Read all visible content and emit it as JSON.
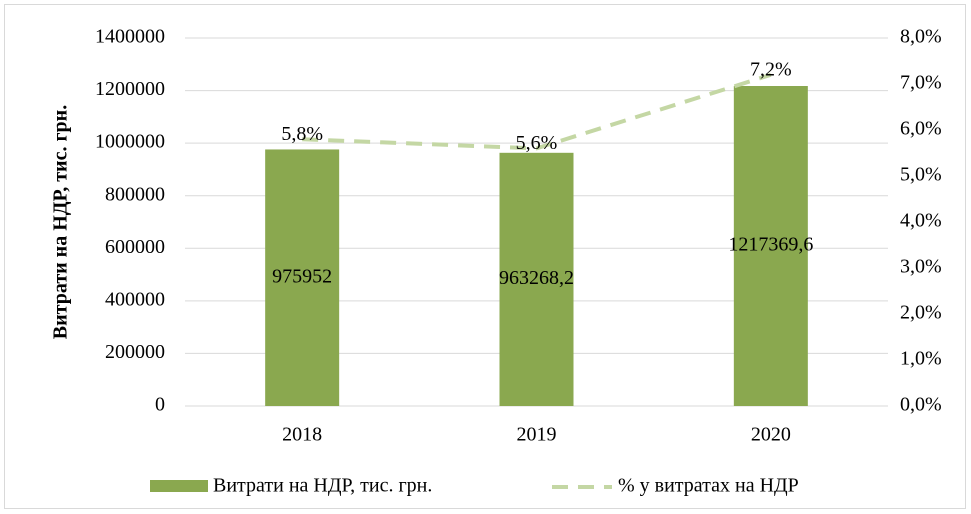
{
  "chart_data": {
    "type": "bar",
    "y_label": "Витрати на НДР, тис. грн.",
    "categories": [
      "2018",
      "2019",
      "2020"
    ],
    "series": [
      {
        "name": "Витрати на НДР, тис. грн.",
        "color": "#8aa84f",
        "values": [
          975952,
          963268.2,
          1217369.6
        ],
        "value_labels": [
          "975952",
          "963268,2",
          "1217369,6"
        ]
      },
      {
        "name": "% у витратах на НДР",
        "color": "#c4d7a4",
        "type": "line",
        "dashed": true,
        "axis": "y2",
        "values": [
          5.8,
          5.6,
          7.2
        ],
        "value_labels": [
          "5,8%",
          "5,6%",
          "7,2%"
        ]
      }
    ],
    "ylim": [
      0,
      1400000
    ],
    "yticks": [
      0,
      200000,
      400000,
      600000,
      800000,
      1000000,
      1200000,
      1400000
    ],
    "y2lim": [
      0,
      8
    ],
    "y2ticks": [
      {
        "value": 0,
        "label": "0,0%"
      },
      {
        "value": 1,
        "label": "1,0%"
      },
      {
        "value": 2,
        "label": "2,0%"
      },
      {
        "value": 3,
        "label": "3,0%"
      },
      {
        "value": 4,
        "label": "4,0%"
      },
      {
        "value": 5,
        "label": "5,0%"
      },
      {
        "value": 6,
        "label": "6,0%"
      },
      {
        "value": 7,
        "label": "7,0%"
      },
      {
        "value": 8,
        "label": "8,0%"
      }
    ],
    "grid": true
  }
}
